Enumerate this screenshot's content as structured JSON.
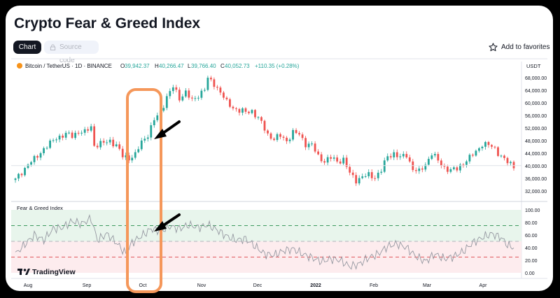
{
  "page": {
    "title": "Crypto Fear & Greed Index",
    "tabs": {
      "chart": "Chart",
      "source": "Source code"
    },
    "favorites": "Add to favorites"
  },
  "header": {
    "pair": "Bitcoin / TetherUS · 1D · BINANCE",
    "o_label": "O",
    "o": "39,942.37",
    "h_label": "H",
    "h": "40,266.47",
    "l_label": "L",
    "l": "39,766.40",
    "c_label": "C",
    "c": "40,052.73",
    "change": "+110.35 (+0.28%)"
  },
  "indicator": {
    "name": "Fear & Greed Index"
  },
  "logo": "TradingView",
  "colors": {
    "up": "#26a69a",
    "down": "#ef5350",
    "highlight": "#f5975a",
    "index_line": "#9598a1",
    "greed_zone": "#e8f5ec",
    "fear_zone": "#fdecee"
  },
  "chart_data": [
    {
      "type": "candlestick",
      "title": "Bitcoin / TetherUS · 1D · BINANCE",
      "ylabel": "USDT",
      "ylim": [
        30000,
        70000
      ],
      "y_ticks": [
        "68,000.00",
        "64,000.00",
        "60,000.00",
        "56,000.00",
        "52,000.00",
        "48,000.00",
        "44,000.00",
        "40,000.00",
        "36,000.00",
        "32,000.00"
      ],
      "x_ticks": [
        "Aug",
        "Sep",
        "Oct",
        "Nov",
        "Dec",
        "2022",
        "Jan",
        "Feb",
        "Mar",
        "Apr"
      ],
      "anchors": [
        {
          "t": 0,
          "v": 35500
        },
        {
          "t": 2,
          "v": 38000
        },
        {
          "t": 4,
          "v": 40500
        },
        {
          "t": 6,
          "v": 42000
        },
        {
          "t": 9,
          "v": 45500
        },
        {
          "t": 11,
          "v": 47000
        },
        {
          "t": 13,
          "v": 49000
        },
        {
          "t": 16,
          "v": 50000
        },
        {
          "t": 18,
          "v": 49500
        },
        {
          "t": 20,
          "v": 51000
        },
        {
          "t": 22,
          "v": 50500
        },
        {
          "t": 24,
          "v": 52500
        },
        {
          "t": 25,
          "v": 46500
        },
        {
          "t": 28,
          "v": 47200
        },
        {
          "t": 30,
          "v": 48000
        },
        {
          "t": 32,
          "v": 46500
        },
        {
          "t": 34,
          "v": 43000
        },
        {
          "t": 36,
          "v": 42500
        },
        {
          "t": 38,
          "v": 43500
        },
        {
          "t": 40,
          "v": 47500
        },
        {
          "t": 42,
          "v": 50000
        },
        {
          "t": 44,
          "v": 54500
        },
        {
          "t": 46,
          "v": 57000
        },
        {
          "t": 48,
          "v": 62000
        },
        {
          "t": 50,
          "v": 65000
        },
        {
          "t": 52,
          "v": 61500
        },
        {
          "t": 54,
          "v": 63500
        },
        {
          "t": 56,
          "v": 60500
        },
        {
          "t": 58,
          "v": 62500
        },
        {
          "t": 60,
          "v": 64500
        },
        {
          "t": 61,
          "v": 67500
        },
        {
          "t": 63,
          "v": 66000
        },
        {
          "t": 65,
          "v": 63500
        },
        {
          "t": 67,
          "v": 60000
        },
        {
          "t": 69,
          "v": 58500
        },
        {
          "t": 71,
          "v": 57500
        },
        {
          "t": 73,
          "v": 57000
        },
        {
          "t": 75,
          "v": 57500
        },
        {
          "t": 77,
          "v": 55000
        },
        {
          "t": 78,
          "v": 53500
        },
        {
          "t": 80,
          "v": 50000
        },
        {
          "t": 82,
          "v": 48500
        },
        {
          "t": 84,
          "v": 49500
        },
        {
          "t": 86,
          "v": 48000
        },
        {
          "t": 88,
          "v": 50500
        },
        {
          "t": 90,
          "v": 50000
        },
        {
          "t": 92,
          "v": 47000
        },
        {
          "t": 94,
          "v": 46500
        },
        {
          "t": 96,
          "v": 43000
        },
        {
          "t": 98,
          "v": 41500
        },
        {
          "t": 100,
          "v": 42500
        },
        {
          "t": 102,
          "v": 41500
        },
        {
          "t": 104,
          "v": 42000
        },
        {
          "t": 106,
          "v": 37500
        },
        {
          "t": 108,
          "v": 35500
        },
        {
          "t": 110,
          "v": 36500
        },
        {
          "t": 112,
          "v": 37000
        },
        {
          "t": 114,
          "v": 36500
        },
        {
          "t": 116,
          "v": 38500
        },
        {
          "t": 118,
          "v": 43000
        },
        {
          "t": 120,
          "v": 44000
        },
        {
          "t": 122,
          "v": 42500
        },
        {
          "t": 124,
          "v": 43500
        },
        {
          "t": 126,
          "v": 39000
        },
        {
          "t": 128,
          "v": 38000
        },
        {
          "t": 130,
          "v": 40500
        },
        {
          "t": 132,
          "v": 44000
        },
        {
          "t": 134,
          "v": 41500
        },
        {
          "t": 136,
          "v": 39500
        },
        {
          "t": 138,
          "v": 38500
        },
        {
          "t": 140,
          "v": 39000
        },
        {
          "t": 142,
          "v": 41000
        },
        {
          "t": 144,
          "v": 42500
        },
        {
          "t": 146,
          "v": 44500
        },
        {
          "t": 148,
          "v": 47000
        },
        {
          "t": 150,
          "v": 46500
        },
        {
          "t": 152,
          "v": 45500
        },
        {
          "t": 154,
          "v": 43000
        },
        {
          "t": 156,
          "v": 41000
        },
        {
          "t": 158,
          "v": 40000
        }
      ],
      "last_close": 40052.73
    },
    {
      "type": "line",
      "title": "Fear & Greed Index",
      "ylim": [
        0,
        100
      ],
      "y_ticks": [
        "100.00",
        "80.00",
        "60.00",
        "40.00",
        "20.00",
        "0.00"
      ],
      "reference_lines": [
        75,
        50,
        25
      ],
      "x_ticks": [
        "Aug",
        "Sep",
        "Oct",
        "Nov",
        "Dec",
        "2022",
        "Jan",
        "Feb",
        "Mar",
        "Apr"
      ],
      "series": [
        {
          "values_by_anchor": [
            {
              "t": 0,
              "v": 30
            },
            {
              "t": 3,
              "v": 45
            },
            {
              "t": 6,
              "v": 60
            },
            {
              "t": 9,
              "v": 52
            },
            {
              "t": 12,
              "v": 70
            },
            {
              "t": 15,
              "v": 72
            },
            {
              "t": 18,
              "v": 82
            },
            {
              "t": 21,
              "v": 78
            },
            {
              "t": 24,
              "v": 86
            },
            {
              "t": 26,
              "v": 52
            },
            {
              "t": 29,
              "v": 62
            },
            {
              "t": 32,
              "v": 48
            },
            {
              "t": 35,
              "v": 30
            },
            {
              "t": 37,
              "v": 48
            },
            {
              "t": 39,
              "v": 55
            },
            {
              "t": 41,
              "v": 62
            },
            {
              "t": 43,
              "v": 70
            },
            {
              "t": 46,
              "v": 66
            },
            {
              "t": 49,
              "v": 74
            },
            {
              "t": 52,
              "v": 70
            },
            {
              "t": 55,
              "v": 76
            },
            {
              "t": 58,
              "v": 72
            },
            {
              "t": 61,
              "v": 76
            },
            {
              "t": 64,
              "v": 68
            },
            {
              "t": 67,
              "v": 58
            },
            {
              "t": 70,
              "v": 52
            },
            {
              "t": 73,
              "v": 54
            },
            {
              "t": 76,
              "v": 42
            },
            {
              "t": 79,
              "v": 30
            },
            {
              "t": 82,
              "v": 28
            },
            {
              "t": 85,
              "v": 35
            },
            {
              "t": 88,
              "v": 38
            },
            {
              "t": 91,
              "v": 30
            },
            {
              "t": 94,
              "v": 24
            },
            {
              "t": 97,
              "v": 18
            },
            {
              "t": 100,
              "v": 22
            },
            {
              "t": 103,
              "v": 20
            },
            {
              "t": 106,
              "v": 10
            },
            {
              "t": 109,
              "v": 14
            },
            {
              "t": 112,
              "v": 24
            },
            {
              "t": 115,
              "v": 30
            },
            {
              "t": 118,
              "v": 42
            },
            {
              "t": 121,
              "v": 46
            },
            {
              "t": 124,
              "v": 40
            },
            {
              "t": 127,
              "v": 26
            },
            {
              "t": 130,
              "v": 18
            },
            {
              "t": 133,
              "v": 30
            },
            {
              "t": 136,
              "v": 22
            },
            {
              "t": 139,
              "v": 26
            },
            {
              "t": 142,
              "v": 34
            },
            {
              "t": 145,
              "v": 48
            },
            {
              "t": 148,
              "v": 56
            },
            {
              "t": 151,
              "v": 62
            },
            {
              "t": 154,
              "v": 56
            },
            {
              "t": 156,
              "v": 44
            },
            {
              "t": 158,
              "v": 40
            }
          ]
        }
      ]
    }
  ]
}
